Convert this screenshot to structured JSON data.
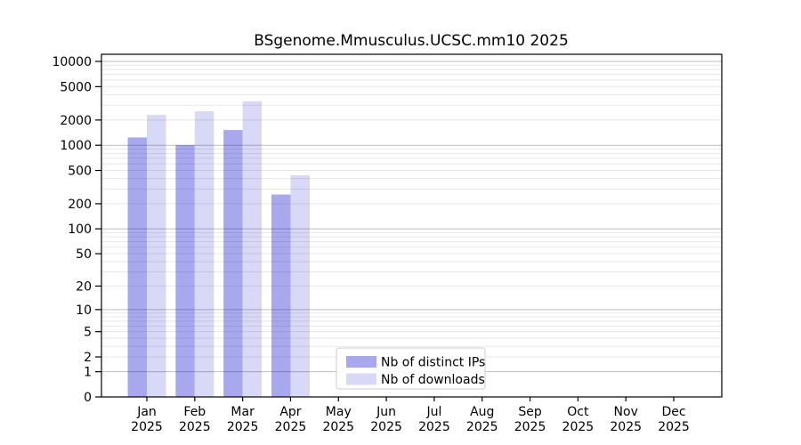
{
  "chart_data": {
    "type": "bar",
    "title": "BSgenome.Mmusculus.UCSC.mm10 2025",
    "categories": [
      "Jan",
      "Feb",
      "Mar",
      "Apr",
      "May",
      "Jun",
      "Jul",
      "Aug",
      "Sep",
      "Oct",
      "Nov",
      "Dec"
    ],
    "x_year_label": "2025",
    "series": [
      {
        "name": "Nb of distinct IPs",
        "color": "#a8a8ef",
        "values": [
          1240,
          1005,
          1520,
          258,
          null,
          null,
          null,
          null,
          null,
          null,
          null,
          null
        ]
      },
      {
        "name": "Nb of downloads",
        "color": "#d8d8f7",
        "values": [
          2300,
          2540,
          3350,
          438,
          null,
          null,
          null,
          null,
          null,
          null,
          null,
          null
        ]
      }
    ],
    "y_scale": "log10(value+1)",
    "y_ticks": [
      10000,
      5000,
      2000,
      1000,
      500,
      200,
      100,
      50,
      20,
      10,
      5,
      2,
      1,
      0
    ],
    "y_major_gridlines": [
      1,
      10,
      100,
      1000,
      10000
    ],
    "ylim": [
      0,
      11900
    ],
    "grid": true,
    "legend": {
      "position": "lower center",
      "border_color": "#cccccc",
      "background": "#ffffff"
    }
  }
}
